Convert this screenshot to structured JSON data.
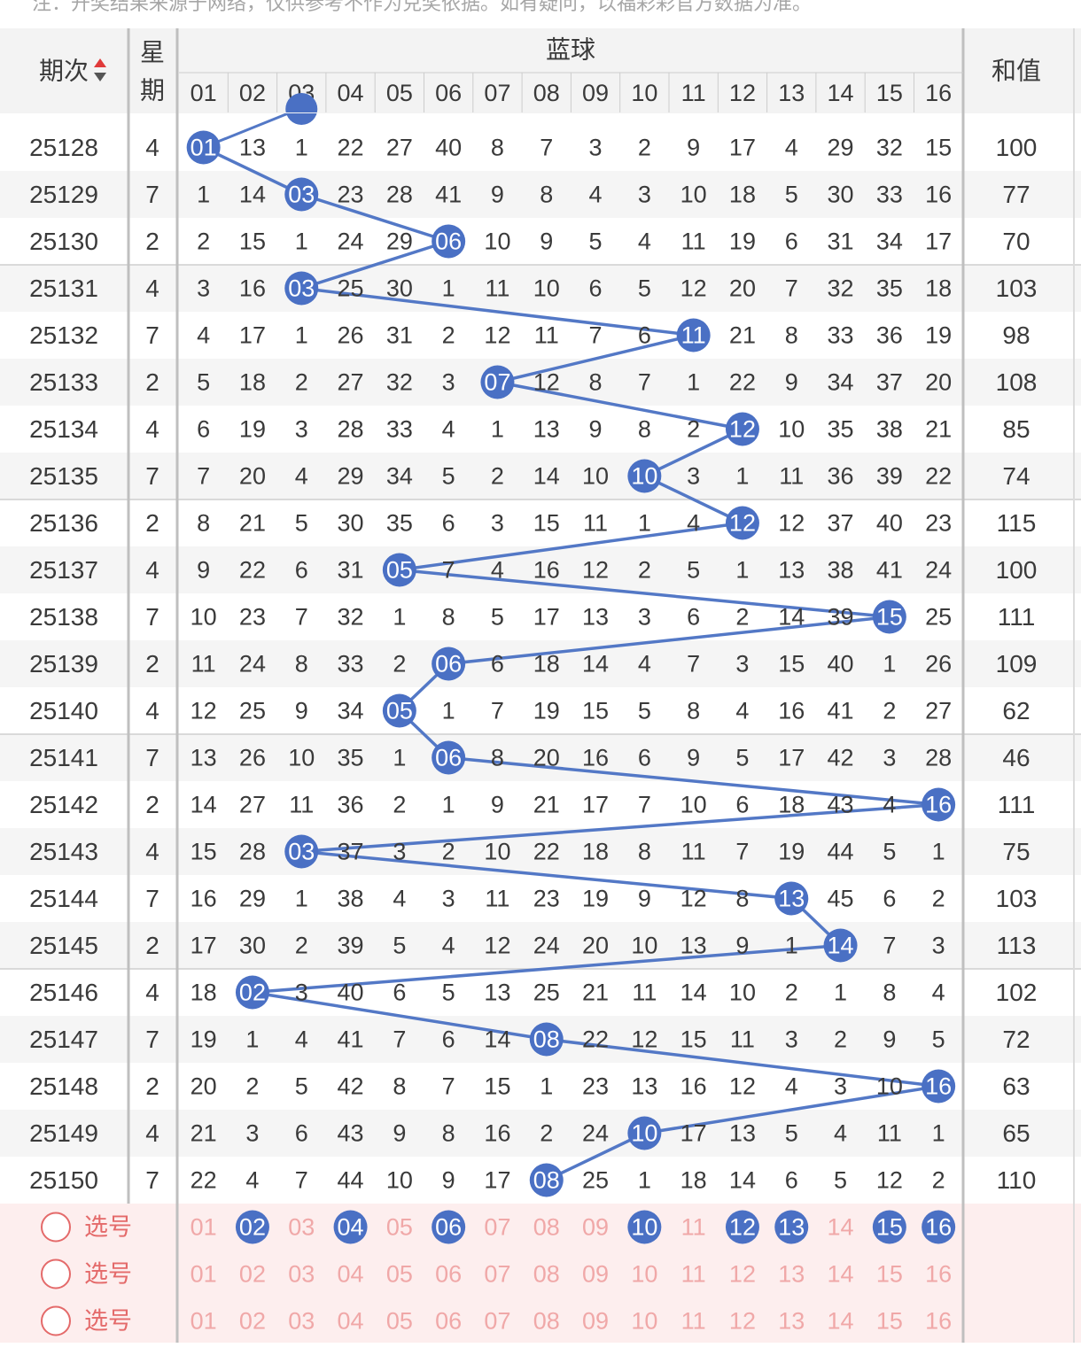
{
  "notice": "注：开奖结果来源于网络，仅供参考不作为兑奖依据。如有疑问，以福彩彩官方数据为准。",
  "colors": {
    "ball": "#4a70c4",
    "line": "#5378c6",
    "select_bg": "#fdeeee",
    "select_text": "#f0a8a8",
    "stripe": "#f5f5f5",
    "divider": "#bfbfbf"
  },
  "header": {
    "period_label": "期次",
    "sort_icon": "sort-up-down-icon",
    "weekday_label_1": "星",
    "weekday_label_2": "期",
    "blue_ball_label": "蓝球",
    "sum_label": "和值",
    "columns": [
      "01",
      "02",
      "03",
      "04",
      "05",
      "06",
      "07",
      "08",
      "09",
      "10",
      "11",
      "12",
      "13",
      "14",
      "15",
      "16"
    ]
  },
  "rows": [
    {
      "period": "25128",
      "weekday": "4",
      "hit": 1,
      "cells": [
        "01",
        "13",
        "1",
        "22",
        "27",
        "40",
        "8",
        "7",
        "3",
        "2",
        "9",
        "17",
        "4",
        "29",
        "32",
        "15"
      ],
      "sum": "100"
    },
    {
      "period": "25129",
      "weekday": "7",
      "hit": 3,
      "cells": [
        "1",
        "14",
        "03",
        "23",
        "28",
        "41",
        "9",
        "8",
        "4",
        "3",
        "10",
        "18",
        "5",
        "30",
        "33",
        "16"
      ],
      "sum": "77"
    },
    {
      "period": "25130",
      "weekday": "2",
      "hit": 6,
      "cells": [
        "2",
        "15",
        "1",
        "24",
        "29",
        "06",
        "10",
        "9",
        "5",
        "4",
        "11",
        "19",
        "6",
        "31",
        "34",
        "17"
      ],
      "sum": "70"
    },
    {
      "period": "25131",
      "weekday": "4",
      "hit": 3,
      "cells": [
        "3",
        "16",
        "03",
        "25",
        "30",
        "1",
        "11",
        "10",
        "6",
        "5",
        "12",
        "20",
        "7",
        "32",
        "35",
        "18"
      ],
      "sum": "103"
    },
    {
      "period": "25132",
      "weekday": "7",
      "hit": 11,
      "cells": [
        "4",
        "17",
        "1",
        "26",
        "31",
        "2",
        "12",
        "11",
        "7",
        "6",
        "11",
        "21",
        "8",
        "33",
        "36",
        "19"
      ],
      "sum": "98"
    },
    {
      "period": "25133",
      "weekday": "2",
      "hit": 7,
      "cells": [
        "5",
        "18",
        "2",
        "27",
        "32",
        "3",
        "07",
        "12",
        "8",
        "7",
        "1",
        "22",
        "9",
        "34",
        "37",
        "20"
      ],
      "sum": "108"
    },
    {
      "period": "25134",
      "weekday": "4",
      "hit": 12,
      "cells": [
        "6",
        "19",
        "3",
        "28",
        "33",
        "4",
        "1",
        "13",
        "9",
        "8",
        "2",
        "12",
        "10",
        "35",
        "38",
        "21"
      ],
      "sum": "85"
    },
    {
      "period": "25135",
      "weekday": "7",
      "hit": 10,
      "cells": [
        "7",
        "20",
        "4",
        "29",
        "34",
        "5",
        "2",
        "14",
        "10",
        "10",
        "3",
        "1",
        "11",
        "36",
        "39",
        "22"
      ],
      "sum": "74"
    },
    {
      "period": "25136",
      "weekday": "2",
      "hit": 12,
      "cells": [
        "8",
        "21",
        "5",
        "30",
        "35",
        "6",
        "3",
        "15",
        "11",
        "1",
        "4",
        "12",
        "12",
        "37",
        "40",
        "23"
      ],
      "sum": "115"
    },
    {
      "period": "25137",
      "weekday": "4",
      "hit": 5,
      "cells": [
        "9",
        "22",
        "6",
        "31",
        "05",
        "7",
        "4",
        "16",
        "12",
        "2",
        "5",
        "1",
        "13",
        "38",
        "41",
        "24"
      ],
      "sum": "100"
    },
    {
      "period": "25138",
      "weekday": "7",
      "hit": 15,
      "cells": [
        "10",
        "23",
        "7",
        "32",
        "1",
        "8",
        "5",
        "17",
        "13",
        "3",
        "6",
        "2",
        "14",
        "39",
        "15",
        "25"
      ],
      "sum": "111"
    },
    {
      "period": "25139",
      "weekday": "2",
      "hit": 6,
      "cells": [
        "11",
        "24",
        "8",
        "33",
        "2",
        "06",
        "6",
        "18",
        "14",
        "4",
        "7",
        "3",
        "15",
        "40",
        "1",
        "26"
      ],
      "sum": "109"
    },
    {
      "period": "25140",
      "weekday": "4",
      "hit": 5,
      "cells": [
        "12",
        "25",
        "9",
        "34",
        "05",
        "1",
        "7",
        "19",
        "15",
        "5",
        "8",
        "4",
        "16",
        "41",
        "2",
        "27"
      ],
      "sum": "62"
    },
    {
      "period": "25141",
      "weekday": "7",
      "hit": 6,
      "cells": [
        "13",
        "26",
        "10",
        "35",
        "1",
        "06",
        "8",
        "20",
        "16",
        "6",
        "9",
        "5",
        "17",
        "42",
        "3",
        "28"
      ],
      "sum": "46"
    },
    {
      "period": "25142",
      "weekday": "2",
      "hit": 16,
      "cells": [
        "14",
        "27",
        "11",
        "36",
        "2",
        "1",
        "9",
        "21",
        "17",
        "7",
        "10",
        "6",
        "18",
        "43",
        "4",
        "16"
      ],
      "sum": "111"
    },
    {
      "period": "25143",
      "weekday": "4",
      "hit": 3,
      "cells": [
        "15",
        "28",
        "03",
        "37",
        "3",
        "2",
        "10",
        "22",
        "18",
        "8",
        "11",
        "7",
        "19",
        "44",
        "5",
        "1"
      ],
      "sum": "75"
    },
    {
      "period": "25144",
      "weekday": "7",
      "hit": 13,
      "cells": [
        "16",
        "29",
        "1",
        "38",
        "4",
        "3",
        "11",
        "23",
        "19",
        "9",
        "12",
        "8",
        "13",
        "45",
        "6",
        "2"
      ],
      "sum": "103"
    },
    {
      "period": "25145",
      "weekday": "2",
      "hit": 14,
      "cells": [
        "17",
        "30",
        "2",
        "39",
        "5",
        "4",
        "12",
        "24",
        "20",
        "10",
        "13",
        "9",
        "1",
        "14",
        "7",
        "3"
      ],
      "sum": "113"
    },
    {
      "period": "25146",
      "weekday": "4",
      "hit": 2,
      "cells": [
        "18",
        "02",
        "3",
        "40",
        "6",
        "5",
        "13",
        "25",
        "21",
        "11",
        "14",
        "10",
        "2",
        "1",
        "8",
        "4"
      ],
      "sum": "102"
    },
    {
      "period": "25147",
      "weekday": "7",
      "hit": 8,
      "cells": [
        "19",
        "1",
        "4",
        "41",
        "7",
        "6",
        "14",
        "08",
        "22",
        "12",
        "15",
        "11",
        "3",
        "2",
        "9",
        "5"
      ],
      "sum": "72"
    },
    {
      "period": "25148",
      "weekday": "2",
      "hit": 16,
      "cells": [
        "20",
        "2",
        "5",
        "42",
        "8",
        "7",
        "15",
        "1",
        "23",
        "13",
        "16",
        "12",
        "4",
        "3",
        "10",
        "16"
      ],
      "sum": "63"
    },
    {
      "period": "25149",
      "weekday": "4",
      "hit": 10,
      "cells": [
        "21",
        "3",
        "6",
        "43",
        "9",
        "8",
        "16",
        "2",
        "24",
        "10",
        "17",
        "13",
        "5",
        "4",
        "11",
        "1"
      ],
      "sum": "65"
    },
    {
      "period": "25150",
      "weekday": "7",
      "hit": 8,
      "cells": [
        "22",
        "4",
        "7",
        "44",
        "10",
        "9",
        "17",
        "08",
        "25",
        "1",
        "18",
        "14",
        "6",
        "5",
        "12",
        "2"
      ],
      "sum": "110"
    }
  ],
  "select_rows": [
    {
      "label": "选号",
      "selected": [
        2,
        4,
        6,
        10,
        12,
        13,
        15,
        16
      ]
    },
    {
      "label": "选号",
      "selected": []
    },
    {
      "label": "选号",
      "selected": []
    }
  ]
}
